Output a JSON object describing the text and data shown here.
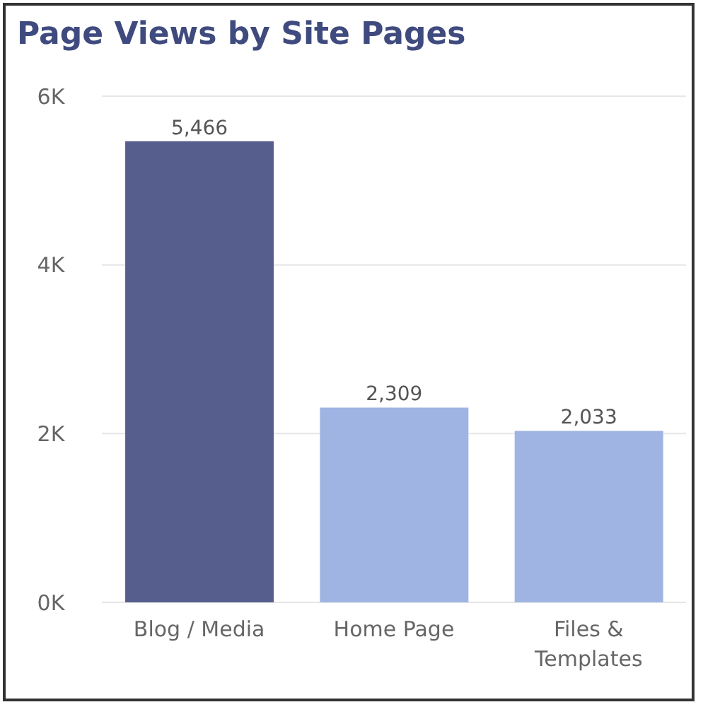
{
  "chart_data": {
    "type": "bar",
    "title": "Page Views by Site Pages",
    "categories": [
      "Blog / Media",
      "Home Page",
      "Files & Templates"
    ],
    "values": [
      5466,
      2309,
      2033
    ],
    "colors": [
      "#565e8e",
      "#9fb4e3",
      "#9fb4e3"
    ],
    "value_labels": [
      "5,466",
      "2,309",
      "2,033"
    ],
    "ylim": [
      0,
      6000
    ],
    "yticks": [
      {
        "value": 0,
        "label": "0K"
      },
      {
        "value": 2000,
        "label": "2K"
      },
      {
        "value": 4000,
        "label": "4K"
      },
      {
        "value": 6000,
        "label": "6K"
      }
    ],
    "grid": "y"
  }
}
